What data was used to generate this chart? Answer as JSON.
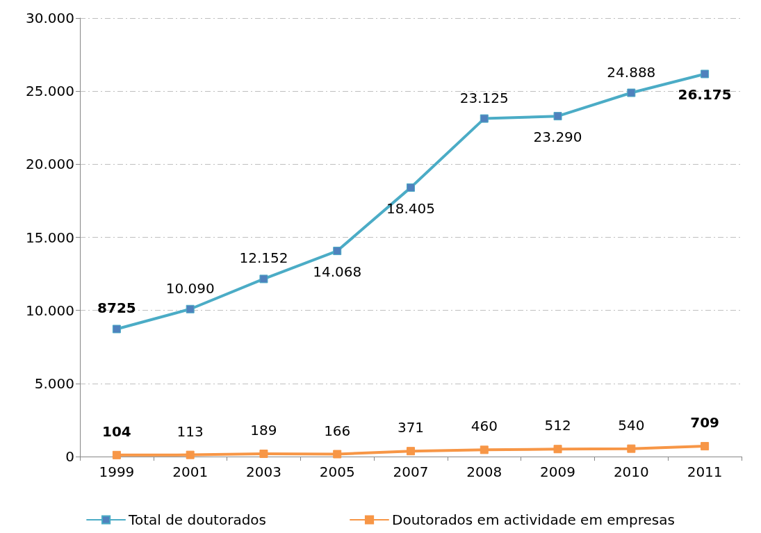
{
  "chart_data": {
    "type": "line",
    "categories": [
      "1999",
      "2001",
      "2003",
      "2005",
      "2007",
      "2008",
      "2009",
      "2010",
      "2011"
    ],
    "series": [
      {
        "name": "Total de doutorados",
        "color": "#4bacc6",
        "values": [
          8725,
          10090,
          12152,
          14068,
          18405,
          23125,
          23290,
          24888,
          26175
        ],
        "value_labels": [
          "8725",
          "10.090",
          "12.152",
          "14.068",
          "18.405",
          "23.125",
          "23.290",
          "24.888",
          "26.175"
        ]
      },
      {
        "name": "Doutorados em actividade em empresas",
        "color": "#f79646",
        "values": [
          104,
          113,
          189,
          166,
          371,
          460,
          512,
          540,
          709
        ],
        "value_labels": [
          "104",
          "113",
          "189",
          "166",
          "371",
          "460",
          "512",
          "540",
          "709"
        ]
      }
    ],
    "ylim": [
      0,
      30000
    ],
    "yticks": [
      0,
      {
        "value": 5000,
        "label": "5.000"
      },
      {
        "value": 10000,
        "label": "10.000"
      },
      {
        "value": 15000,
        "label": "15.000"
      },
      {
        "value": 20000,
        "label": "20.000"
      },
      {
        "value": 25000,
        "label": "25.000"
      },
      {
        "value": 30000,
        "label": "30.000"
      }
    ],
    "grid": "y",
    "legend": "bottom",
    "marker": "square",
    "line_style": "solid"
  }
}
